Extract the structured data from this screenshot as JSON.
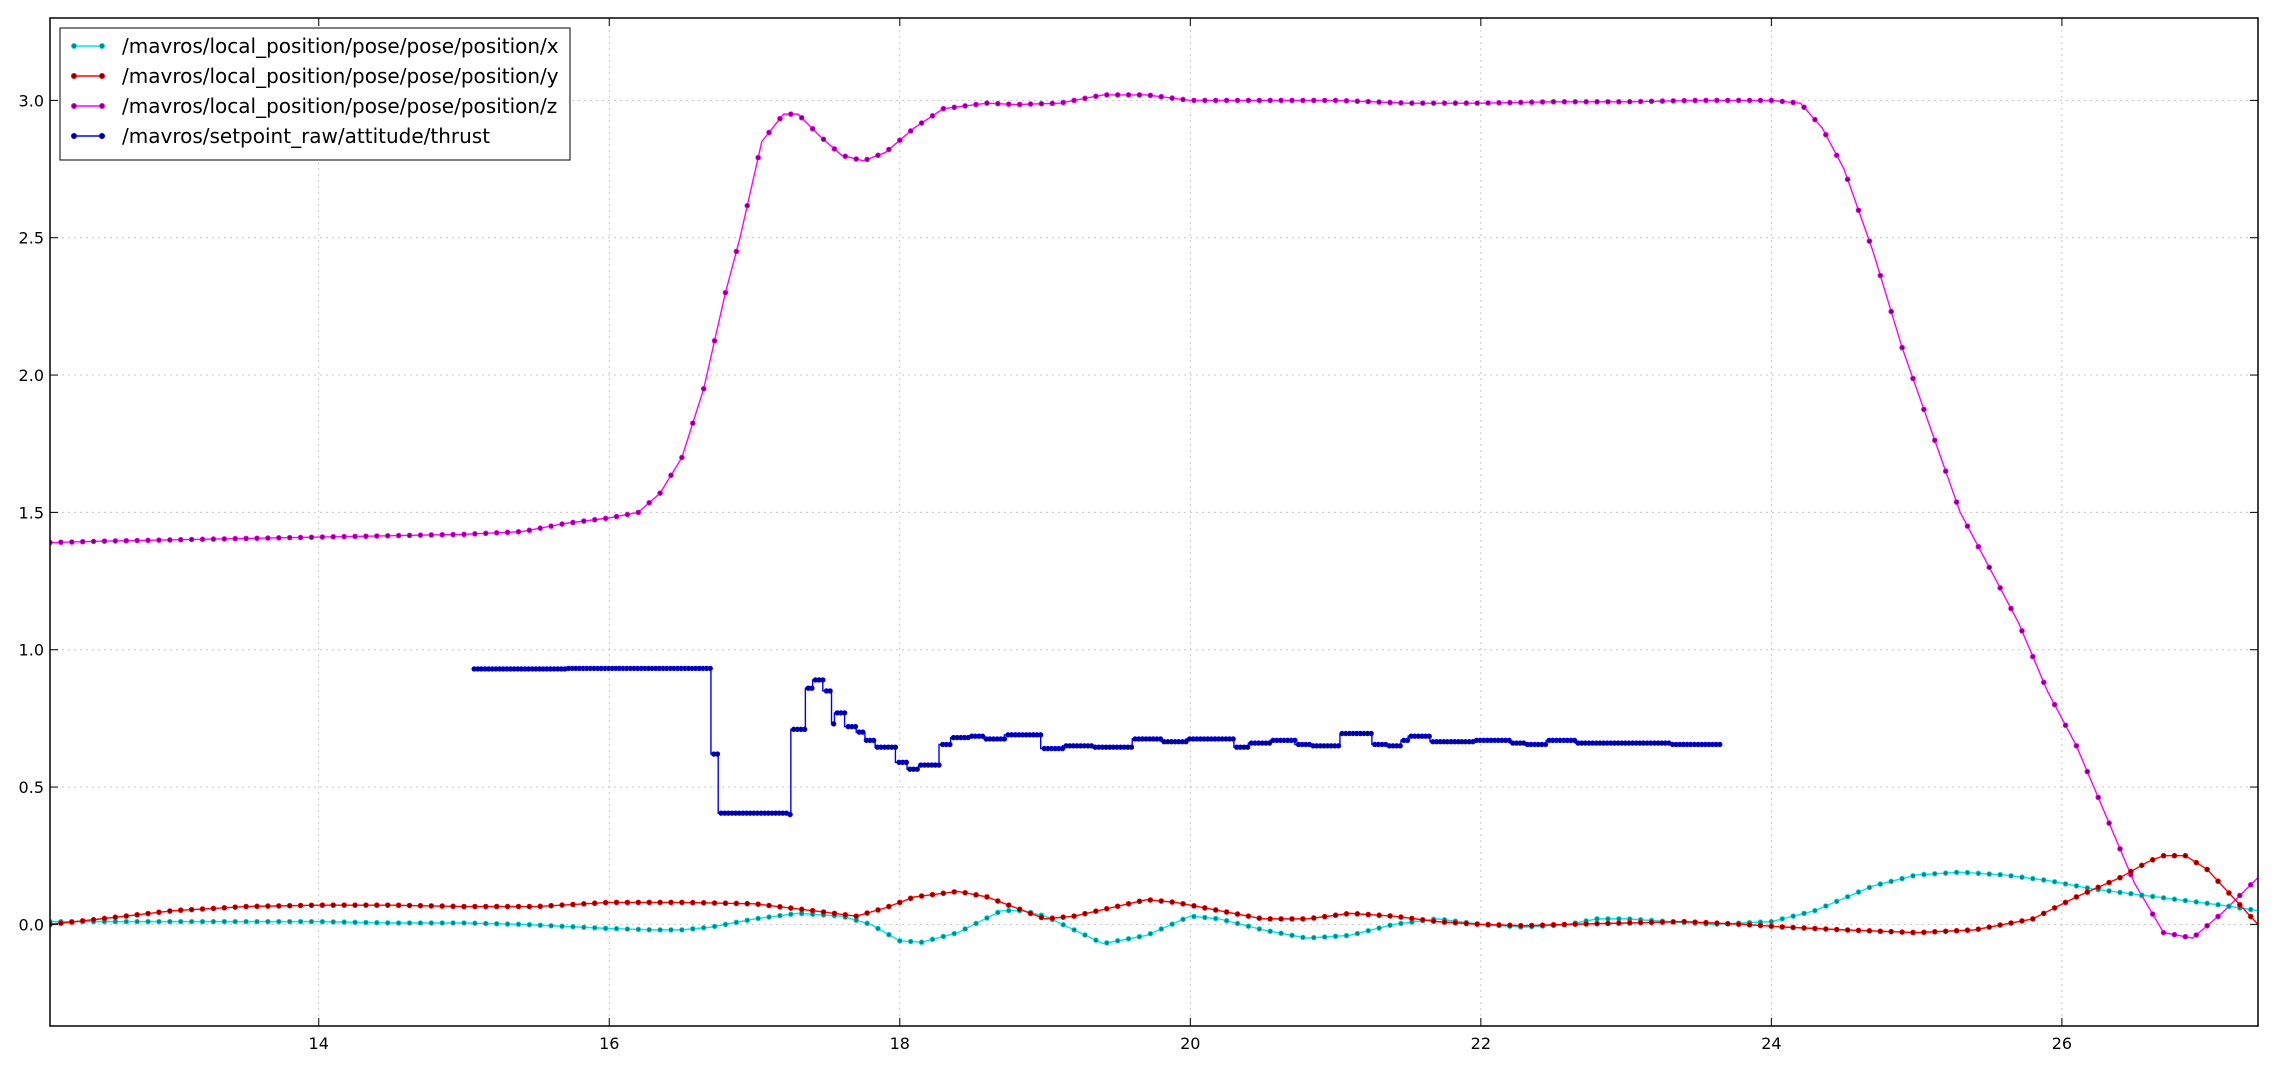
{
  "chart_data": {
    "type": "line",
    "title": "",
    "xlabel": "",
    "ylabel": "",
    "xlim": [
      12.15,
      27.35
    ],
    "ylim": [
      -0.37,
      3.3
    ],
    "xticks": [
      14,
      16,
      18,
      20,
      22,
      24,
      26
    ],
    "yticks": [
      0.0,
      0.5,
      1.0,
      1.5,
      2.0,
      2.5,
      3.0
    ],
    "xtick_labels": [
      "14",
      "16",
      "18",
      "20",
      "22",
      "24",
      "26"
    ],
    "ytick_labels": [
      "0.0",
      "0.5",
      "1.0",
      "1.5",
      "2.0",
      "2.5",
      "3.0"
    ],
    "grid": true,
    "legend_position": "top-left",
    "series": [
      {
        "name": "/mavros/local_position/pose/pose/position/x",
        "color": "#00e5e5",
        "marker": "#1a7f7f",
        "points": [
          [
            12.15,
            0.01
          ],
          [
            12.6,
            0.01
          ],
          [
            13.0,
            0.01
          ],
          [
            13.5,
            0.01
          ],
          [
            14.0,
            0.01
          ],
          [
            14.5,
            0.005
          ],
          [
            15.0,
            0.005
          ],
          [
            15.4,
            0.0
          ],
          [
            15.8,
            -0.01
          ],
          [
            16.0,
            -0.015
          ],
          [
            16.3,
            -0.02
          ],
          [
            16.5,
            -0.02
          ],
          [
            16.7,
            -0.01
          ],
          [
            17.0,
            0.02
          ],
          [
            17.3,
            0.04
          ],
          [
            17.6,
            0.03
          ],
          [
            17.8,
            0.0
          ],
          [
            18.0,
            -0.06
          ],
          [
            18.15,
            -0.065
          ],
          [
            18.4,
            -0.03
          ],
          [
            18.7,
            0.05
          ],
          [
            18.85,
            0.05
          ],
          [
            19.0,
            0.03
          ],
          [
            19.2,
            -0.02
          ],
          [
            19.4,
            -0.07
          ],
          [
            19.7,
            -0.04
          ],
          [
            20.0,
            0.03
          ],
          [
            20.2,
            0.02
          ],
          [
            20.5,
            -0.02
          ],
          [
            20.8,
            -0.05
          ],
          [
            21.1,
            -0.04
          ],
          [
            21.4,
            0.0
          ],
          [
            21.7,
            0.02
          ],
          [
            22.0,
            0.0
          ],
          [
            22.3,
            -0.01
          ],
          [
            22.6,
            0.0
          ],
          [
            22.8,
            0.02
          ],
          [
            23.0,
            0.02
          ],
          [
            23.3,
            0.01
          ],
          [
            23.6,
            0.0
          ],
          [
            24.0,
            0.01
          ],
          [
            24.3,
            0.05
          ],
          [
            24.7,
            0.14
          ],
          [
            25.0,
            0.18
          ],
          [
            25.3,
            0.19
          ],
          [
            25.6,
            0.18
          ],
          [
            25.9,
            0.16
          ],
          [
            26.2,
            0.13
          ],
          [
            26.5,
            0.11
          ],
          [
            26.8,
            0.09
          ],
          [
            27.1,
            0.07
          ],
          [
            27.35,
            0.05
          ]
        ]
      },
      {
        "name": "/mavros/local_position/pose/pose/position/y",
        "color": "#ff0000",
        "marker": "#800000",
        "points": [
          [
            12.15,
            0.0
          ],
          [
            12.5,
            0.02
          ],
          [
            13.0,
            0.05
          ],
          [
            13.5,
            0.065
          ],
          [
            14.0,
            0.07
          ],
          [
            14.5,
            0.07
          ],
          [
            15.0,
            0.065
          ],
          [
            15.5,
            0.065
          ],
          [
            16.0,
            0.08
          ],
          [
            16.5,
            0.08
          ],
          [
            17.0,
            0.075
          ],
          [
            17.4,
            0.05
          ],
          [
            17.7,
            0.03
          ],
          [
            17.9,
            0.06
          ],
          [
            18.1,
            0.1
          ],
          [
            18.4,
            0.12
          ],
          [
            18.6,
            0.1
          ],
          [
            18.8,
            0.06
          ],
          [
            19.0,
            0.02
          ],
          [
            19.2,
            0.03
          ],
          [
            19.45,
            0.06
          ],
          [
            19.7,
            0.09
          ],
          [
            19.9,
            0.08
          ],
          [
            20.2,
            0.05
          ],
          [
            20.5,
            0.02
          ],
          [
            20.8,
            0.02
          ],
          [
            21.1,
            0.04
          ],
          [
            21.4,
            0.03
          ],
          [
            21.7,
            0.01
          ],
          [
            22.0,
            0.0
          ],
          [
            22.3,
            -0.005
          ],
          [
            22.6,
            0.0
          ],
          [
            23.0,
            0.005
          ],
          [
            23.4,
            0.01
          ],
          [
            23.8,
            0.0
          ],
          [
            24.1,
            -0.01
          ],
          [
            24.5,
            -0.02
          ],
          [
            25.0,
            -0.03
          ],
          [
            25.4,
            -0.02
          ],
          [
            25.8,
            0.02
          ],
          [
            26.1,
            0.1
          ],
          [
            26.4,
            0.17
          ],
          [
            26.6,
            0.23
          ],
          [
            26.7,
            0.25
          ],
          [
            26.85,
            0.25
          ],
          [
            27.0,
            0.2
          ],
          [
            27.35,
            0.0
          ]
        ]
      },
      {
        "name": "/mavros/local_position/pose/pose/position/z",
        "color": "#ff00ff",
        "marker": "#7f007f",
        "points": [
          [
            12.15,
            1.39
          ],
          [
            12.5,
            1.395
          ],
          [
            13.0,
            1.4
          ],
          [
            13.5,
            1.405
          ],
          [
            14.0,
            1.41
          ],
          [
            14.5,
            1.415
          ],
          [
            15.0,
            1.42
          ],
          [
            15.4,
            1.43
          ],
          [
            15.7,
            1.46
          ],
          [
            16.0,
            1.48
          ],
          [
            16.2,
            1.5
          ],
          [
            16.35,
            1.57
          ],
          [
            16.5,
            1.7
          ],
          [
            16.65,
            1.95
          ],
          [
            16.8,
            2.3
          ],
          [
            16.9,
            2.5
          ],
          [
            17.05,
            2.85
          ],
          [
            17.2,
            2.95
          ],
          [
            17.3,
            2.95
          ],
          [
            17.45,
            2.87
          ],
          [
            17.6,
            2.8
          ],
          [
            17.75,
            2.78
          ],
          [
            17.9,
            2.81
          ],
          [
            18.1,
            2.9
          ],
          [
            18.3,
            2.97
          ],
          [
            18.6,
            2.99
          ],
          [
            18.8,
            2.985
          ],
          [
            19.1,
            2.99
          ],
          [
            19.4,
            3.02
          ],
          [
            19.7,
            3.02
          ],
          [
            20.0,
            3.0
          ],
          [
            20.5,
            3.0
          ],
          [
            21.0,
            3.0
          ],
          [
            21.5,
            2.99
          ],
          [
            22.0,
            2.99
          ],
          [
            22.5,
            2.995
          ],
          [
            23.0,
            2.995
          ],
          [
            23.5,
            3.0
          ],
          [
            24.0,
            3.0
          ],
          [
            24.2,
            2.99
          ],
          [
            24.35,
            2.9
          ],
          [
            24.5,
            2.75
          ],
          [
            24.7,
            2.45
          ],
          [
            24.9,
            2.1
          ],
          [
            25.1,
            1.8
          ],
          [
            25.3,
            1.5
          ],
          [
            25.5,
            1.3
          ],
          [
            25.7,
            1.1
          ],
          [
            25.9,
            0.85
          ],
          [
            26.1,
            0.65
          ],
          [
            26.3,
            0.4
          ],
          [
            26.5,
            0.15
          ],
          [
            26.7,
            -0.03
          ],
          [
            26.9,
            -0.05
          ],
          [
            27.1,
            0.04
          ],
          [
            27.35,
            0.17
          ]
        ]
      },
      {
        "name": "/mavros/setpoint_raw/attitude/thrust",
        "color": "#0000ff",
        "marker": "#000080",
        "step": true,
        "points": [
          [
            15.07,
            0.93
          ],
          [
            15.6,
            0.93
          ],
          [
            15.7,
            0.932
          ],
          [
            16.67,
            0.932
          ],
          [
            16.7,
            0.62
          ],
          [
            16.75,
            0.405
          ],
          [
            17.0,
            0.405
          ],
          [
            17.22,
            0.4
          ],
          [
            17.25,
            0.71
          ],
          [
            17.35,
            0.86
          ],
          [
            17.4,
            0.89
          ],
          [
            17.47,
            0.85
          ],
          [
            17.53,
            0.73
          ],
          [
            17.55,
            0.77
          ],
          [
            17.62,
            0.72
          ],
          [
            17.7,
            0.7
          ],
          [
            17.76,
            0.67
          ],
          [
            17.83,
            0.645
          ],
          [
            17.97,
            0.59
          ],
          [
            18.05,
            0.565
          ],
          [
            18.13,
            0.58
          ],
          [
            18.27,
            0.655
          ],
          [
            18.35,
            0.68
          ],
          [
            18.48,
            0.685
          ],
          [
            18.58,
            0.675
          ],
          [
            18.72,
            0.69
          ],
          [
            18.97,
            0.64
          ],
          [
            19.12,
            0.65
          ],
          [
            19.32,
            0.645
          ],
          [
            19.6,
            0.675
          ],
          [
            19.8,
            0.665
          ],
          [
            19.97,
            0.675
          ],
          [
            20.3,
            0.645
          ],
          [
            20.4,
            0.66
          ],
          [
            20.55,
            0.67
          ],
          [
            20.72,
            0.655
          ],
          [
            20.82,
            0.65
          ],
          [
            21.03,
            0.695
          ],
          [
            21.25,
            0.655
          ],
          [
            21.35,
            0.65
          ],
          [
            21.45,
            0.67
          ],
          [
            21.5,
            0.685
          ],
          [
            21.65,
            0.665
          ],
          [
            21.95,
            0.67
          ],
          [
            22.2,
            0.66
          ],
          [
            22.3,
            0.655
          ],
          [
            22.45,
            0.67
          ],
          [
            22.65,
            0.66
          ],
          [
            23.3,
            0.655
          ],
          [
            23.65,
            0.655
          ]
        ]
      }
    ]
  }
}
